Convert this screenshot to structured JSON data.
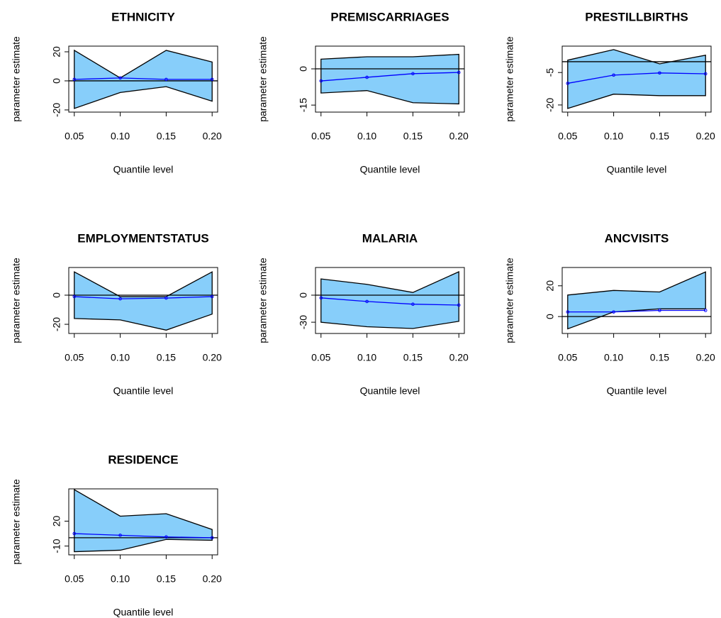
{
  "chart_data": [
    {
      "type": "band",
      "title": "ETHNICITY",
      "xlabel": "Quantile level",
      "ylabel": "parameter estimate",
      "x": [
        0.05,
        0.1,
        0.15,
        0.2
      ],
      "upper": [
        21,
        2,
        21,
        13
      ],
      "lower": [
        -19,
        -8,
        -4,
        -14
      ],
      "values": [
        1,
        2,
        1,
        1
      ],
      "xlim": [
        0.044,
        0.206
      ],
      "xticks": [
        0.05,
        {
          "value": 0.1,
          "label": "0.10"
        },
        0.15,
        {
          "value": 0.2,
          "label": "0.20"
        }
      ],
      "ylim": [
        -21.5,
        23.9
      ],
      "yticks": [
        -20,
        0,
        20
      ],
      "refline": 0,
      "fill": "#87cefa",
      "color": "#0000ff"
    },
    {
      "type": "band",
      "title": "PREMISCARRIAGES",
      "xlabel": "Quantile level",
      "ylabel": "parameter estimate",
      "x": [
        0.05,
        0.1,
        0.15,
        0.2
      ],
      "upper": [
        4,
        5,
        5,
        6
      ],
      "lower": [
        -10,
        -9,
        -14,
        -14.5
      ],
      "values": [
        -5,
        -3.5,
        -2,
        -1.5
      ],
      "xlim": [
        0.044,
        0.206
      ],
      "xticks": [
        0.05,
        {
          "value": 0.1,
          "label": "0.10"
        },
        0.15,
        {
          "value": 0.2,
          "label": "0.20"
        }
      ],
      "ylim": [
        -17.9,
        9.4
      ],
      "yticks": [
        -15,
        0
      ],
      "refline": 0,
      "fill": "#87cefa",
      "color": "#0000ff"
    },
    {
      "type": "band",
      "title": "PRESTILLBIRTHS",
      "xlabel": "Quantile level",
      "ylabel": "parameter estimate",
      "x": [
        0.05,
        0.1,
        0.15,
        0.2
      ],
      "upper": [
        0.7,
        5.6,
        -1,
        3
      ],
      "lower": [
        -21.6,
        -15,
        -15.7,
        -15.7
      ],
      "values": [
        -10,
        -6.2,
        -5.2,
        -5.6
      ],
      "xlim": [
        0.044,
        0.206
      ],
      "xticks": [
        0.05,
        {
          "value": 0.1,
          "label": "0.10"
        },
        0.15,
        {
          "value": 0.2,
          "label": "0.20"
        }
      ],
      "ylim": [
        -23.3,
        7.2
      ],
      "yticks": [
        -20,
        -5
      ],
      "refline": 0,
      "fill": "#87cefa",
      "color": "#0000ff"
    },
    {
      "type": "band",
      "title": "EMPLOYMENTSTATUS",
      "xlabel": "Quantile level",
      "ylabel": "parameter estimate",
      "x": [
        0.05,
        0.1,
        0.15,
        0.2
      ],
      "upper": [
        16,
        -1,
        -1,
        16
      ],
      "lower": [
        -16,
        -17,
        -24,
        -13
      ],
      "values": [
        -1,
        -2.5,
        -2,
        -1
      ],
      "xlim": [
        0.044,
        0.206
      ],
      "xticks": [
        0.05,
        {
          "value": 0.1,
          "label": "0.10"
        },
        0.15,
        {
          "value": 0.2,
          "label": "0.20"
        }
      ],
      "ylim": [
        -26.3,
        19
      ],
      "yticks": [
        -20,
        0
      ],
      "refline": 0,
      "fill": "#87cefa",
      "color": "#0000ff"
    },
    {
      "type": "band",
      "title": "MALARIA",
      "xlabel": "Quantile level",
      "ylabel": "parameter estimate",
      "x": [
        0.05,
        0.1,
        0.15,
        0.2
      ],
      "upper": [
        18,
        12,
        3,
        26
      ],
      "lower": [
        -30,
        -35,
        -37,
        -29
      ],
      "values": [
        -3,
        -7,
        -10,
        -11
      ],
      "xlim": [
        0.044,
        0.206
      ],
      "xticks": [
        0.05,
        {
          "value": 0.1,
          "label": "0.10"
        },
        0.15,
        {
          "value": 0.2,
          "label": "0.20"
        }
      ],
      "ylim": [
        -42.5,
        30.7
      ],
      "yticks": [
        -30,
        0
      ],
      "refline": 0,
      "fill": "#87cefa",
      "color": "#0000ff"
    },
    {
      "type": "band",
      "title": "ANCVISITS",
      "xlabel": "Quantile level",
      "ylabel": "parameter estimate",
      "x": [
        0.05,
        0.1,
        0.15,
        0.2
      ],
      "upper": [
        14,
        17,
        16,
        29
      ],
      "lower": [
        -8,
        3,
        5,
        5
      ],
      "values": [
        3,
        3,
        4,
        4
      ],
      "xlim": [
        0.044,
        0.206
      ],
      "xticks": [
        0.05,
        {
          "value": 0.1,
          "label": "0.10"
        },
        0.15,
        {
          "value": 0.2,
          "label": "0.20"
        }
      ],
      "ylim": [
        -11,
        31.9
      ],
      "yticks": [
        0,
        20
      ],
      "refline": 0,
      "fill": "#87cefa",
      "color": "#0000ff"
    },
    {
      "type": "band",
      "title": "RESIDENCE",
      "xlabel": "Quantile level",
      "ylabel": "parameter estimate",
      "x": [
        0.05,
        0.1,
        0.15,
        0.2
      ],
      "upper": [
        58,
        26,
        29,
        10
      ],
      "lower": [
        -16.8,
        -15,
        -2,
        -3
      ],
      "values": [
        5,
        3,
        1,
        0
      ],
      "xlim": [
        0.044,
        0.206
      ],
      "xticks": [
        0.05,
        {
          "value": 0.1,
          "label": "0.10"
        },
        0.15,
        {
          "value": 0.2,
          "label": "0.20"
        }
      ],
      "ylim": [
        -20.6,
        58.9
      ],
      "yticks": [
        -10,
        20
      ],
      "refline": 0,
      "fill": "#87cefa",
      "color": "#0000ff"
    }
  ]
}
